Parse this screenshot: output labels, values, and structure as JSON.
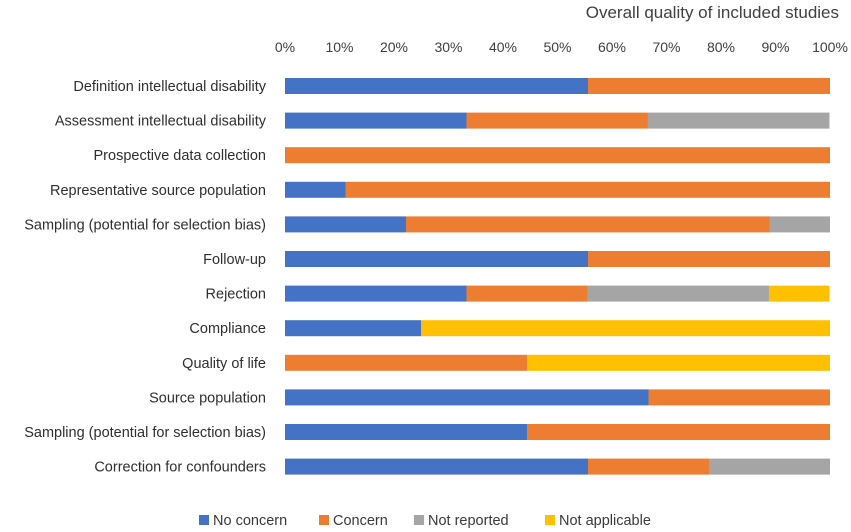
{
  "chart_data": {
    "type": "bar",
    "orientation": "horizontal",
    "stacked": true,
    "title": "Overall quality of included studies",
    "x_axis_position": "top",
    "xlim": [
      0,
      100
    ],
    "x_ticks": [
      "0%",
      "10%",
      "20%",
      "30%",
      "40%",
      "50%",
      "60%",
      "70%",
      "80%",
      "90%",
      "100%"
    ],
    "grid": false,
    "legend_position": "bottom",
    "categories": [
      "Definition intellectual disability",
      "Assessment intellectual disability",
      "Prospective data collection",
      "Representative source population",
      "Sampling (potential for selection bias)",
      "Follow-up",
      "Rejection",
      "Compliance",
      "Quality of life",
      "Source population",
      "Sampling (potential for selection bias)",
      "Correction for confounders"
    ],
    "series": [
      {
        "name": "No concern",
        "color": "#4472C4",
        "values": [
          55.6,
          33.3,
          0,
          11.1,
          22.2,
          55.6,
          33.3,
          25,
          0,
          66.7,
          44.4,
          55.6
        ]
      },
      {
        "name": "Concern",
        "color": "#ED7D31",
        "values": [
          44.4,
          33.3,
          100,
          88.9,
          66.7,
          44.4,
          22.2,
          0,
          44.4,
          33.3,
          55.6,
          22.2
        ]
      },
      {
        "name": "Not reported",
        "color": "#A5A5A5",
        "values": [
          0,
          33.3,
          0,
          0,
          11.1,
          0,
          33.3,
          0,
          0,
          0,
          0,
          22.2
        ]
      },
      {
        "name": "Not applicable",
        "color": "#FFC000",
        "values": [
          0,
          0,
          0,
          0,
          0,
          0,
          11.1,
          75,
          55.6,
          0,
          0,
          0
        ]
      }
    ]
  }
}
